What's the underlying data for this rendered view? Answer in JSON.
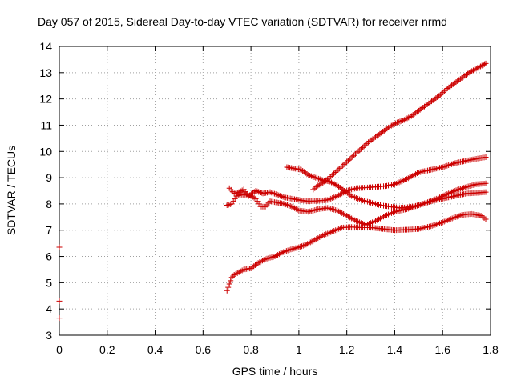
{
  "chart_data": {
    "type": "scatter",
    "title": "Day 057 of 2015, Sidereal Day-to-day VTEC variation (SDTVAR) for receiver nrmd",
    "xlabel": "GPS time / hours",
    "ylabel": "SDTVAR / TECUs",
    "xlim": [
      0,
      1.8
    ],
    "ylim": [
      3,
      14
    ],
    "x_ticks": [
      "0",
      "0.2",
      "0.4",
      "0.6",
      "0.8",
      "1",
      "1.2",
      "1.4",
      "1.6",
      "1.8"
    ],
    "y_ticks": [
      "3",
      "4",
      "5",
      "6",
      "7",
      "8",
      "9",
      "10",
      "11",
      "12",
      "13",
      "14"
    ],
    "grid": true,
    "marker": "+",
    "color": "#cc0000",
    "series": [
      {
        "x": [
          0.0,
          0.0,
          0.0
        ],
        "y": [
          6.35,
          4.3,
          3.65
        ]
      },
      {
        "x": [
          0.7,
          0.71,
          0.72,
          0.73,
          0.75,
          0.77,
          0.8,
          0.83,
          0.86,
          0.9,
          0.93,
          0.96,
          1.0,
          1.03,
          1.06,
          1.1,
          1.14,
          1.18,
          1.22,
          1.26,
          1.3,
          1.35,
          1.4,
          1.45,
          1.5,
          1.55,
          1.6,
          1.64,
          1.68,
          1.72,
          1.76,
          1.78
        ],
        "y": [
          4.7,
          4.95,
          5.2,
          5.3,
          5.4,
          5.5,
          5.55,
          5.75,
          5.9,
          6.0,
          6.15,
          6.25,
          6.35,
          6.45,
          6.6,
          6.8,
          6.95,
          7.1,
          7.12,
          7.1,
          7.1,
          7.05,
          7.0,
          7.02,
          7.05,
          7.15,
          7.3,
          7.45,
          7.58,
          7.62,
          7.55,
          7.42
        ]
      },
      {
        "x": [
          0.7,
          0.72,
          0.74,
          0.76,
          0.78,
          0.8,
          0.82,
          0.84,
          0.86,
          0.88,
          0.91,
          0.94,
          0.97,
          1.0,
          1.04,
          1.08,
          1.12,
          1.16,
          1.2,
          1.24,
          1.28,
          1.32,
          1.36,
          1.4,
          1.45,
          1.5,
          1.55,
          1.6,
          1.65,
          1.7,
          1.74,
          1.78
        ],
        "y": [
          7.95,
          8.0,
          8.3,
          8.35,
          8.35,
          8.3,
          8.2,
          7.9,
          7.9,
          8.1,
          8.05,
          8.0,
          7.9,
          7.75,
          7.7,
          7.8,
          7.85,
          7.75,
          7.55,
          7.35,
          7.2,
          7.35,
          7.55,
          7.7,
          7.8,
          7.95,
          8.1,
          8.2,
          8.3,
          8.4,
          8.42,
          8.45
        ]
      },
      {
        "x": [
          0.71,
          0.73,
          0.75,
          0.77,
          0.79,
          0.82,
          0.85,
          0.88,
          0.91,
          0.94,
          0.97,
          1.0,
          1.04,
          1.08,
          1.12,
          1.16,
          1.2,
          1.24,
          1.28,
          1.32,
          1.36,
          1.4,
          1.45,
          1.5,
          1.55,
          1.6,
          1.65,
          1.7,
          1.74,
          1.78
        ],
        "y": [
          8.6,
          8.4,
          8.45,
          8.55,
          8.3,
          8.5,
          8.4,
          8.45,
          8.35,
          8.25,
          8.2,
          8.15,
          8.1,
          8.12,
          8.15,
          8.3,
          8.5,
          8.6,
          8.62,
          8.65,
          8.68,
          8.75,
          8.95,
          9.2,
          9.3,
          9.4,
          9.55,
          9.65,
          9.72,
          9.78
        ]
      },
      {
        "x": [
          0.95,
          0.98,
          1.01,
          1.04,
          1.07,
          1.1,
          1.13,
          1.16,
          1.19,
          1.22,
          1.26,
          1.3,
          1.34,
          1.38,
          1.42,
          1.46,
          1.5,
          1.55,
          1.6,
          1.65,
          1.7,
          1.74,
          1.78
        ],
        "y": [
          9.4,
          9.35,
          9.3,
          9.1,
          9.0,
          8.9,
          8.85,
          8.7,
          8.5,
          8.3,
          8.15,
          8.05,
          7.95,
          7.9,
          7.85,
          7.88,
          7.95,
          8.1,
          8.3,
          8.5,
          8.65,
          8.75,
          8.78
        ]
      },
      {
        "x": [
          1.06,
          1.08,
          1.1,
          1.12,
          1.14,
          1.17,
          1.2,
          1.23,
          1.26,
          1.29,
          1.32,
          1.35,
          1.38,
          1.41,
          1.44,
          1.47,
          1.5,
          1.53,
          1.56,
          1.59,
          1.62,
          1.65,
          1.68,
          1.71,
          1.74,
          1.77,
          1.78
        ],
        "y": [
          8.55,
          8.7,
          8.8,
          8.95,
          9.1,
          9.35,
          9.6,
          9.85,
          10.1,
          10.35,
          10.55,
          10.75,
          10.95,
          11.1,
          11.2,
          11.35,
          11.55,
          11.75,
          11.95,
          12.15,
          12.4,
          12.6,
          12.8,
          13.0,
          13.15,
          13.3,
          13.35
        ]
      }
    ]
  }
}
